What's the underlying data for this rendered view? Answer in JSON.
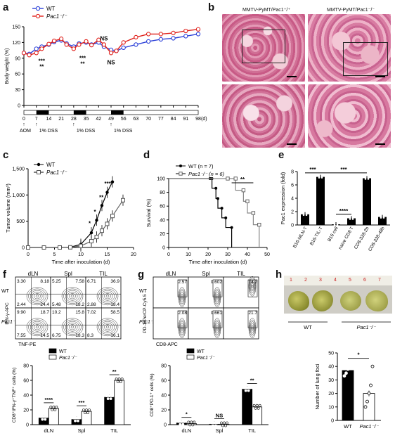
{
  "panels": {
    "a": {
      "letter": "a",
      "legend": [
        "WT",
        "Pac1⁻/⁻"
      ],
      "ylabel": "Body weight (%)",
      "xticks": [
        "0",
        "7",
        "14",
        "21",
        "28",
        "35",
        "42",
        "49",
        "56",
        "63",
        "70",
        "77",
        "84",
        "91",
        "98"
      ],
      "xunit": "(d)",
      "yticks": [
        "0",
        "30",
        "60",
        "90",
        "120",
        "150"
      ],
      "treatments": [
        "AOM",
        "1% DSS",
        "1% DSS",
        "1% DSS"
      ],
      "sig": [
        "***",
        "**",
        "***",
        "**",
        "NS",
        "NS"
      ]
    },
    "b": {
      "letter": "b",
      "titles": [
        "MMTV-PyMT/Pac1⁺/⁺",
        "MMTV-PyMT/Pac1⁻/⁻"
      ]
    },
    "c": {
      "letter": "c",
      "legend": [
        "WT",
        "Pac1⁻/⁻"
      ],
      "ylabel": "Tumor volume (mm³)",
      "xlabel": "Time after inoculation (d)",
      "yticks": [
        "0",
        "500",
        "1,000",
        "1,500"
      ],
      "xticks": [
        "0",
        "5",
        "10",
        "15",
        "20"
      ],
      "sig": [
        "*",
        "*",
        "**",
        "***"
      ]
    },
    "d": {
      "letter": "d",
      "legend": [
        "WT (n = 7)",
        "Pac1⁻/⁻ (n = 6)"
      ],
      "ylabel": "Survival (%)",
      "xlabel": "Time after inoculation (d)",
      "yticks": [
        "0",
        "20",
        "40",
        "60",
        "80",
        "100"
      ],
      "xticks": [
        "0",
        "10",
        "20",
        "30",
        "40",
        "50"
      ],
      "sig": "**"
    },
    "e": {
      "letter": "e",
      "ylabel": "Pac1 expression (fold)",
      "yticks": [
        "0",
        "2",
        "4",
        "6",
        "8"
      ],
      "categories": [
        "B16-MLN-T",
        "B16-TIL-T",
        "B16 cell",
        "naive CD8 T",
        "CD8-328-2h",
        "CD8-328-48h"
      ],
      "sig": [
        "***",
        "***",
        "****"
      ]
    },
    "f": {
      "letter": "f",
      "columns": [
        "dLN",
        "Spl",
        "TIL"
      ],
      "rows": [
        "WT",
        "Pac1⁻/⁻"
      ],
      "yaxis": "IFN-γ-APC",
      "xaxis": "TNF-PE",
      "quadrants": [
        [
          [
            "3.30",
            "8.18",
            "2.44",
            "24.4"
          ],
          [
            "5.25",
            "7.58",
            "5.48",
            "18.2"
          ],
          [
            "6.71",
            "36.9",
            "2.88",
            "18.4"
          ]
        ],
        [
          [
            "9.90",
            "18.7",
            "7.55",
            "14.5"
          ],
          [
            "10.2",
            "15.8",
            "6.75",
            "18.3"
          ],
          [
            "7.02",
            "58.5",
            "8.3",
            "16.1"
          ]
        ]
      ],
      "legend": [
        "WT",
        "Pac1⁻/⁻"
      ],
      "bar_ylabel": "CD8⁺IFN-γ⁺TNF⁺ cells (%)",
      "bar_yticks": [
        "0",
        "20",
        "40",
        "60",
        "80"
      ],
      "bar_sig": [
        "****",
        "***",
        "**"
      ]
    },
    "g": {
      "letter": "g",
      "columns": [
        "dLN",
        "Spl",
        "TIL"
      ],
      "rows": [
        "WT",
        "Pac1⁻/⁻"
      ],
      "yaxis": "PD-1-PerCP-Cy5.5",
      "xaxis": "CD8-APC",
      "values": [
        [
          "2.57",
          "0.602",
          "74.2"
        ],
        [
          "2.08",
          "0.661",
          "21.7"
        ]
      ],
      "legend": [
        "WT",
        "Pac1⁻/⁻"
      ],
      "bar_ylabel": "CD8⁺PD-1⁺ cells (%)",
      "bar_yticks": [
        "0",
        "20",
        "40",
        "60",
        "80"
      ],
      "bar_sig": [
        "*",
        "NS",
        "**"
      ]
    },
    "h": {
      "letter": "h",
      "ruler": [
        "1",
        "2",
        "3",
        "4",
        "5",
        "6",
        "7"
      ],
      "groups": [
        "WT",
        "Pac1⁻/⁻"
      ],
      "ylabel": "Number of lung foci",
      "yticks": [
        "0",
        "10",
        "20",
        "30",
        "40",
        "50"
      ],
      "sig": "*"
    }
  },
  "chart_data": [
    {
      "id": "a",
      "type": "line",
      "x": [
        0,
        3,
        7,
        10,
        14,
        17,
        21,
        24,
        28,
        31,
        35,
        38,
        42,
        45,
        49,
        52,
        56,
        63,
        70,
        77,
        84,
        91,
        98
      ],
      "series": [
        {
          "name": "WT",
          "values": [
            100,
            98,
            108,
            112,
            116,
            121,
            124,
            118,
            112,
            118,
            120,
            116,
            120,
            112,
            106,
            104,
            110,
            116,
            122,
            126,
            128,
            132,
            136
          ]
        },
        {
          "name": "Pac1-/-",
          "values": [
            100,
            96,
            100,
            108,
            117,
            123,
            127,
            116,
            108,
            116,
            122,
            115,
            125,
            116,
            100,
            104,
            120,
            130,
            136,
            136,
            138,
            142,
            145
          ]
        }
      ],
      "ylim": [
        0,
        150
      ],
      "xlim": [
        0,
        98
      ]
    },
    {
      "id": "c",
      "type": "line",
      "x": [
        0,
        3,
        6,
        8,
        10,
        12,
        13,
        14,
        15,
        16,
        18
      ],
      "series": [
        {
          "name": "WT",
          "values": [
            0,
            0,
            0,
            5,
            60,
            280,
            520,
            800,
            1050,
            1250,
            null
          ]
        },
        {
          "name": "Pac1-/-",
          "values": [
            0,
            0,
            0,
            3,
            30,
            120,
            200,
            320,
            450,
            600,
            900
          ]
        }
      ],
      "ylim": [
        0,
        1500
      ],
      "xlim": [
        0,
        20
      ]
    },
    {
      "id": "d",
      "type": "line",
      "series": [
        {
          "name": "WT (n = 7)",
          "x": [
            0,
            21,
            22,
            24,
            25,
            27,
            29,
            32
          ],
          "values": [
            100,
            100,
            86,
            71,
            57,
            43,
            29,
            0
          ]
        },
        {
          "name": "Pac1-/- (n = 6)",
          "x": [
            0,
            30,
            34,
            38,
            40,
            43,
            46
          ],
          "values": [
            100,
            100,
            83,
            67,
            50,
            33,
            0
          ]
        }
      ],
      "ylim": [
        0,
        100
      ],
      "xlim": [
        0,
        50
      ]
    },
    {
      "id": "e",
      "type": "bar",
      "categories": [
        "B16-MLN-T",
        "B16-TIL-T",
        "B16 cell",
        "naive CD8 T",
        "CD8-328-2h",
        "CD8-328-48h"
      ],
      "values": [
        1.6,
        7.2,
        0.1,
        1.0,
        7.0,
        1.2
      ],
      "ylim": [
        0,
        8
      ]
    },
    {
      "id": "f",
      "type": "bar",
      "categories": [
        "dLN",
        "Spl",
        "TIL"
      ],
      "series": [
        {
          "name": "WT",
          "values": [
            9,
            7,
            37
          ]
        },
        {
          "name": "Pac1-/-",
          "values": [
            22,
            18,
            60
          ]
        }
      ],
      "ylim": [
        0,
        80
      ]
    },
    {
      "id": "g",
      "type": "bar",
      "categories": [
        "dLN",
        "Spl",
        "TIL"
      ],
      "series": [
        {
          "name": "WT",
          "values": [
            2.2,
            0.6,
            48
          ]
        },
        {
          "name": "Pac1-/-",
          "values": [
            1.5,
            0.5,
            24
          ]
        }
      ],
      "ylim": [
        0,
        80
      ]
    },
    {
      "id": "h",
      "type": "bar",
      "categories": [
        "WT",
        "Pac1-/-"
      ],
      "values": [
        37,
        20
      ],
      "ylim": [
        0,
        50
      ]
    }
  ]
}
